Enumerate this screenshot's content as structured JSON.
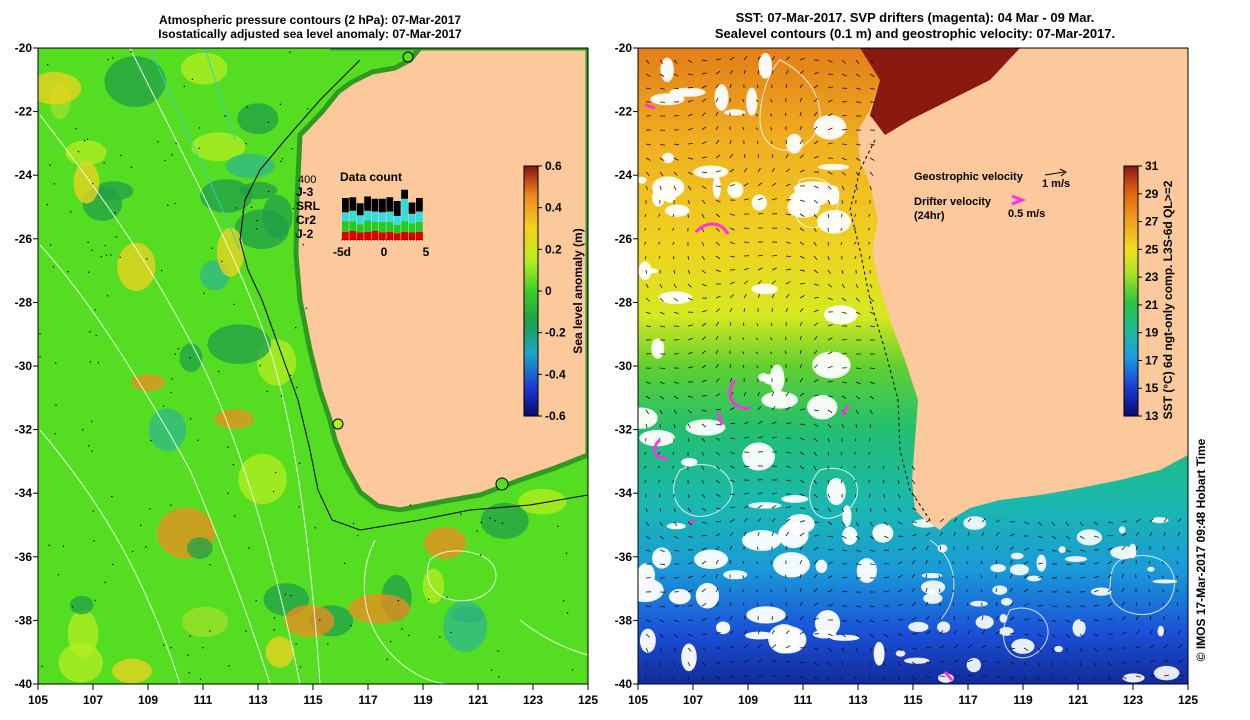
{
  "left_panel": {
    "title_line1": "Atmospheric pressure contours (2 hPa): 07-Mar-2017",
    "title_line2": "Isostatically adjusted sea level anomaly: 07-Mar-2017",
    "x_ticks": [
      "105",
      "107",
      "109",
      "111",
      "113",
      "115",
      "117",
      "119",
      "121",
      "123",
      "125"
    ],
    "y_ticks": [
      "-20",
      "-22",
      "-24",
      "-26",
      "-28",
      "-30",
      "-32",
      "-34",
      "-36",
      "-38",
      "-40"
    ],
    "colorbar": {
      "label": "Sea level anomaly (m)",
      "ticks": [
        "0.6",
        "0.4",
        "0.2",
        "0",
        "-0.2",
        "-0.4",
        "-0.6"
      ],
      "range": [
        -0.6,
        0.6
      ]
    },
    "data_count": {
      "title": "Data count",
      "max_label": "400",
      "legend": [
        {
          "label": "J-3",
          "color": "#000000"
        },
        {
          "label": "SRL",
          "color": "#33dddd"
        },
        {
          "label": "Cr2",
          "color": "#22cc22"
        },
        {
          "label": "J-2",
          "color": "#dd0000"
        }
      ],
      "x_ticks": [
        "-5d",
        "0",
        "5"
      ],
      "bars": [
        {
          "j2": 55,
          "cr2": 70,
          "srl": 60,
          "j3": 95
        },
        {
          "j2": 60,
          "cr2": 65,
          "srl": 70,
          "j3": 90
        },
        {
          "j2": 50,
          "cr2": 55,
          "srl": 60,
          "j3": 80
        },
        {
          "j2": 55,
          "cr2": 75,
          "srl": 65,
          "j3": 95
        },
        {
          "j2": 60,
          "cr2": 60,
          "srl": 70,
          "j3": 85
        },
        {
          "j2": 50,
          "cr2": 70,
          "srl": 65,
          "j3": 90
        },
        {
          "j2": 55,
          "cr2": 65,
          "srl": 70,
          "j3": 95
        },
        {
          "j2": 45,
          "cr2": 55,
          "srl": 60,
          "j3": 100
        },
        {
          "j2": 55,
          "cr2": 70,
          "srl": 150,
          "j3": 60
        },
        {
          "j2": 50,
          "cr2": 60,
          "srl": 65,
          "j3": 75
        },
        {
          "j2": 55,
          "cr2": 65,
          "srl": 70,
          "j3": 90
        }
      ]
    }
  },
  "right_panel": {
    "title_line1": "SST: 07-Mar-2017. SVP drifters (magenta): 04 Mar - 09 Mar.",
    "title_line2": "Sealevel contours (0.1 m) and geostrophic velocity: 07-Mar-2017.",
    "x_ticks": [
      "105",
      "107",
      "109",
      "111",
      "113",
      "115",
      "117",
      "119",
      "121",
      "123",
      "125"
    ],
    "y_ticks": [
      "-20",
      "-22",
      "-24",
      "-26",
      "-28",
      "-30",
      "-32",
      "-34",
      "-36",
      "-38",
      "-40"
    ],
    "legend_geostrophic": "Geostrophic velocity",
    "legend_geostrophic_scale": "1 m/s",
    "legend_drifter_line1": "Drifter velocity",
    "legend_drifter_line2": "(24hr)",
    "legend_drifter_scale": "0.5 m/s",
    "colorbar": {
      "label": "SST (°C) 6d ngt-only comp. L3S-6d QL>=2",
      "ticks": [
        "31",
        "29",
        "27",
        "25",
        "23",
        "21",
        "19",
        "17",
        "15",
        "13"
      ],
      "range": [
        13,
        31
      ]
    }
  },
  "credit": "© IMOS 17-Mar-2017 09:48 Hobart Time",
  "colors": {
    "land": "#fbc99b",
    "drifter": "#ff33dd",
    "sla_base": "#55dd22",
    "missing": "#ffffff"
  }
}
